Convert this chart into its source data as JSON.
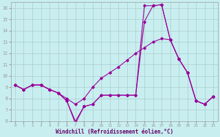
{
  "xlabel": "Windchill (Refroidissement éolien,°C)",
  "background_color": "#c8eef0",
  "line_color": "#990099",
  "grid_color": "#aacccc",
  "xlim": [
    -0.5,
    23.5
  ],
  "ylim": [
    6,
    16.5
  ],
  "xticks": [
    0,
    1,
    2,
    3,
    4,
    5,
    6,
    7,
    8,
    9,
    10,
    11,
    12,
    13,
    14,
    15,
    16,
    17,
    18,
    19,
    20,
    21,
    22,
    23
  ],
  "yticks": [
    6,
    7,
    8,
    9,
    10,
    11,
    12,
    13,
    14,
    15,
    16
  ],
  "line1_x": [
    0,
    1,
    2,
    3,
    4,
    5,
    6,
    7,
    8,
    9,
    10,
    11,
    12,
    13,
    14,
    15,
    16,
    17,
    18,
    19,
    20,
    21,
    22,
    23
  ],
  "line1_y": [
    9.2,
    8.8,
    9.2,
    9.2,
    8.8,
    8.5,
    7.8,
    5.8,
    7.3,
    7.5,
    8.3,
    8.3,
    8.3,
    8.3,
    8.3,
    16.2,
    16.2,
    16.3,
    13.2,
    11.5,
    10.3,
    7.8,
    7.5,
    8.2
  ],
  "line2_x": [
    0,
    1,
    2,
    3,
    4,
    5,
    6,
    7,
    8,
    9,
    10,
    11,
    12,
    13,
    14,
    15,
    16,
    17,
    18,
    19,
    20,
    21,
    22,
    23
  ],
  "line2_y": [
    9.2,
    8.8,
    9.2,
    9.2,
    8.8,
    8.5,
    8.0,
    7.5,
    8.0,
    9.0,
    9.8,
    10.3,
    10.8,
    11.4,
    12.0,
    12.5,
    13.0,
    13.3,
    13.2,
    11.5,
    10.3,
    7.8,
    7.5,
    8.2
  ],
  "line3_x": [
    0,
    1,
    2,
    3,
    4,
    5,
    6,
    7,
    8,
    9,
    10,
    11,
    12,
    13,
    14,
    15,
    16,
    17,
    18,
    19,
    20,
    21,
    22,
    23
  ],
  "line3_y": [
    9.2,
    8.8,
    9.2,
    9.2,
    8.8,
    8.5,
    7.8,
    6.0,
    7.3,
    7.5,
    8.3,
    8.3,
    8.3,
    8.3,
    8.3,
    14.8,
    16.2,
    16.3,
    13.2,
    11.5,
    10.3,
    7.8,
    7.5,
    8.2
  ]
}
